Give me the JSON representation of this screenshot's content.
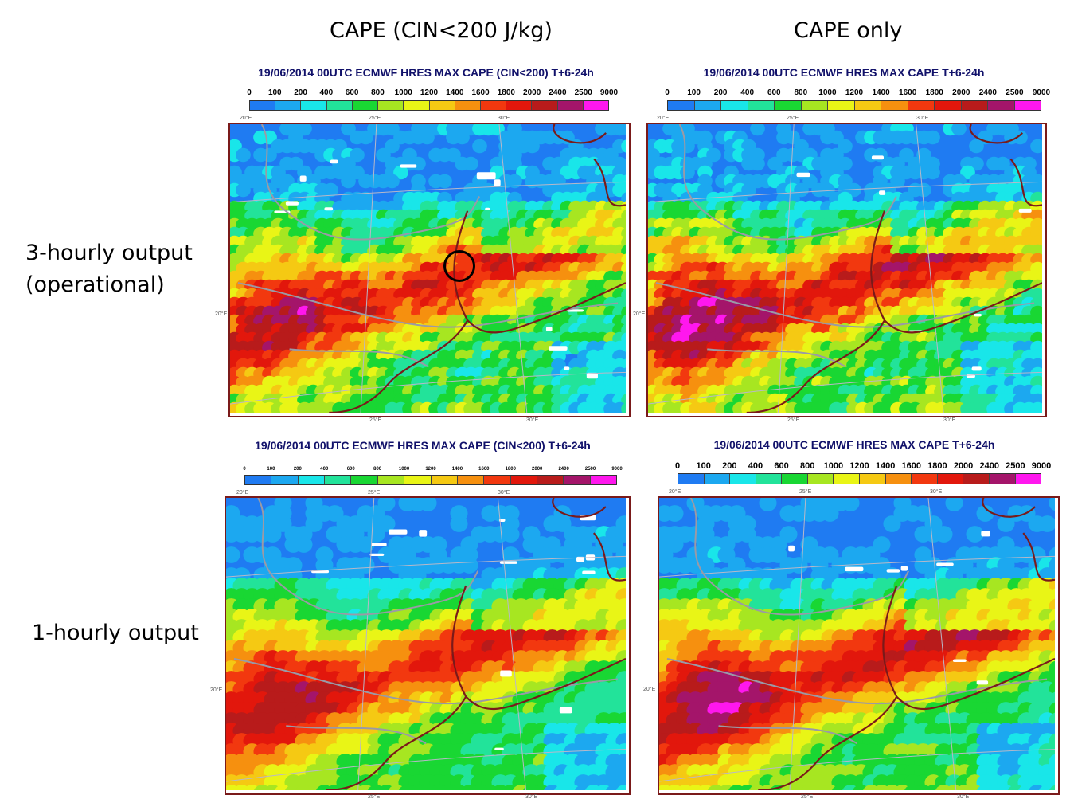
{
  "column_titles": [
    "CAPE (CIN<200 J/kg)",
    "CAPE only"
  ],
  "row_titles": {
    "row1_line1": "3-hourly output",
    "row1_line2": "(operational)",
    "row2": "1-hourly output"
  },
  "panels": [
    {
      "title": "19/06/2014 00UTC ECMWF HRES MAX CAPE (CIN<200) T+6-24h"
    },
    {
      "title": "19/06/2014 00UTC ECMWF HRES MAX CAPE T+6-24h"
    },
    {
      "title": "19/06/2014 00UTC ECMWF HRES MAX CAPE (CIN<200) T+6-24h"
    },
    {
      "title": "19/06/2014 00UTC ECMWF HRES MAX CAPE T+6-24h"
    }
  ],
  "colorbar": {
    "labels": [
      "0",
      "100",
      "200",
      "400",
      "600",
      "800",
      "1000",
      "1200",
      "1400",
      "1600",
      "1800",
      "2000",
      "2400",
      "2500",
      "9000"
    ],
    "colors": [
      "#1f7bf2",
      "#1ca8f0",
      "#19e6e9",
      "#22e39a",
      "#19d733",
      "#a7e621",
      "#e9f516",
      "#f5c913",
      "#f6900f",
      "#f2380f",
      "#e2170c",
      "#b81b1b",
      "#a4156a",
      "#ff17ee"
    ]
  },
  "map_ticks": {
    "top": [
      "20°E",
      "25°E",
      "30°E"
    ],
    "bottom": [
      "25°E",
      "30°E"
    ],
    "left": "20°E"
  }
}
